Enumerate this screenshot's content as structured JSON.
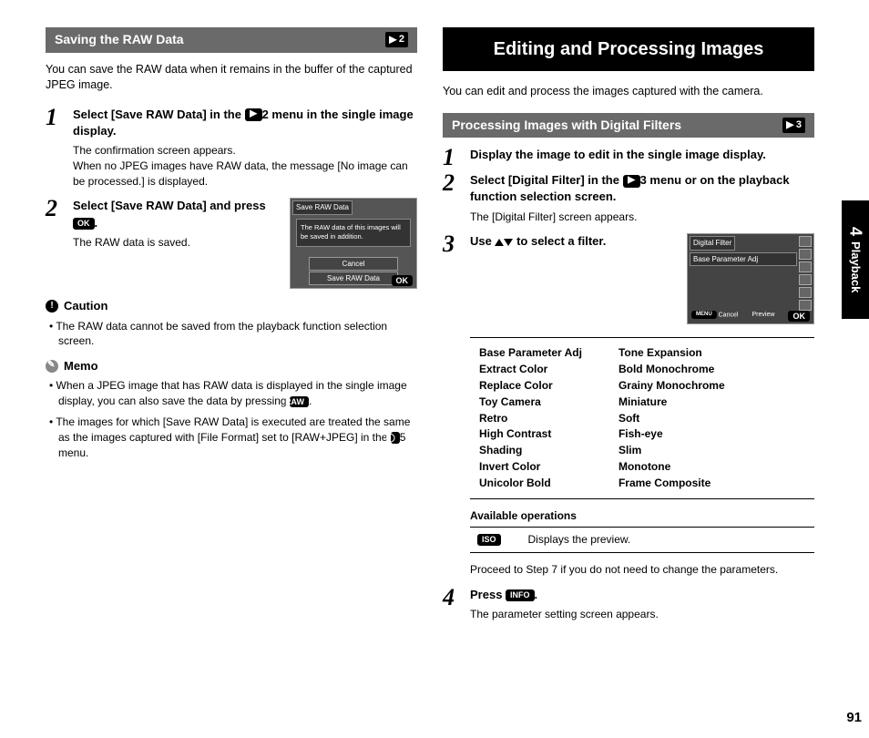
{
  "left": {
    "section_title": "Saving the RAW Data",
    "section_badge": "2",
    "intro": "You can save the RAW data when it remains in the buffer of the captured JPEG image.",
    "step1": {
      "num": "1",
      "title_a": "Select [Save RAW Data] in the ",
      "title_b": "2 menu in the single image display.",
      "body1": "The confirmation screen appears.",
      "body2": "When no JPEG images have RAW data, the message [No image can be processed.] is displayed."
    },
    "step2": {
      "num": "2",
      "title_a": "Select [Save RAW Data] and press ",
      "title_b": ".",
      "ok_label": "OK",
      "body": "The RAW data is saved."
    },
    "ss": {
      "title": "Save RAW Data",
      "msg": "The RAW data of this images will be saved in addition.",
      "btn1": "Cancel",
      "btn2": "Save RAW Data",
      "ok": "OK"
    },
    "caution_label": "Caution",
    "caution_item": "The RAW data cannot be saved from the playback function selection screen.",
    "memo_label": "Memo",
    "memo1_a": "When a JPEG image that has RAW data is displayed in the single image display, you can also save the data by pressing ",
    "memo1_b": ".",
    "raw_label": "RAW",
    "memo2_a": "The images for which [Save RAW Data] is executed are treated the same as the images captured with [File Format] set to [RAW+JPEG] in the ",
    "memo2_b": "5 menu.",
    "cam_label": "◯"
  },
  "right": {
    "main_heading": "Editing and Processing Images",
    "intro": "You can edit and process the images captured with the camera.",
    "section_title": "Processing Images with Digital Filters",
    "section_badge": "3",
    "step1": {
      "num": "1",
      "title": "Display the image to edit in the single image display."
    },
    "step2": {
      "num": "2",
      "title_a": "Select [Digital Filter] in the ",
      "title_b": "3 menu or on the playback function selection screen.",
      "body": "The [Digital Filter] screen appears."
    },
    "step3": {
      "num": "3",
      "title_a": "Use ",
      "title_b": " to select a filter."
    },
    "ss2": {
      "title": "Digital Filter",
      "sub": "Base Parameter Adj",
      "cancel": "Cancel",
      "preview": "Preview",
      "ok": "OK"
    },
    "filters_left": [
      "Base Parameter Adj",
      "Extract Color",
      "Replace Color",
      "Toy Camera",
      "Retro",
      "High Contrast",
      "Shading",
      "Invert Color",
      "Unicolor Bold"
    ],
    "filters_right": [
      "Tone Expansion",
      "Bold Monochrome",
      "Grainy Monochrome",
      "Miniature",
      "Soft",
      "Fish-eye",
      "Slim",
      "Monotone",
      "Frame Composite"
    ],
    "avail_label": "Available operations",
    "op_icon": "ISO",
    "op_text": "Displays the preview.",
    "proceed": "Proceed to Step 7 if you do not need to change the parameters.",
    "step4": {
      "num": "4",
      "title_a": "Press ",
      "title_b": ".",
      "info_label": "INFO",
      "body": "The parameter setting screen appears."
    }
  },
  "side": {
    "num": "4",
    "label": "Playback"
  },
  "page_num": "91"
}
